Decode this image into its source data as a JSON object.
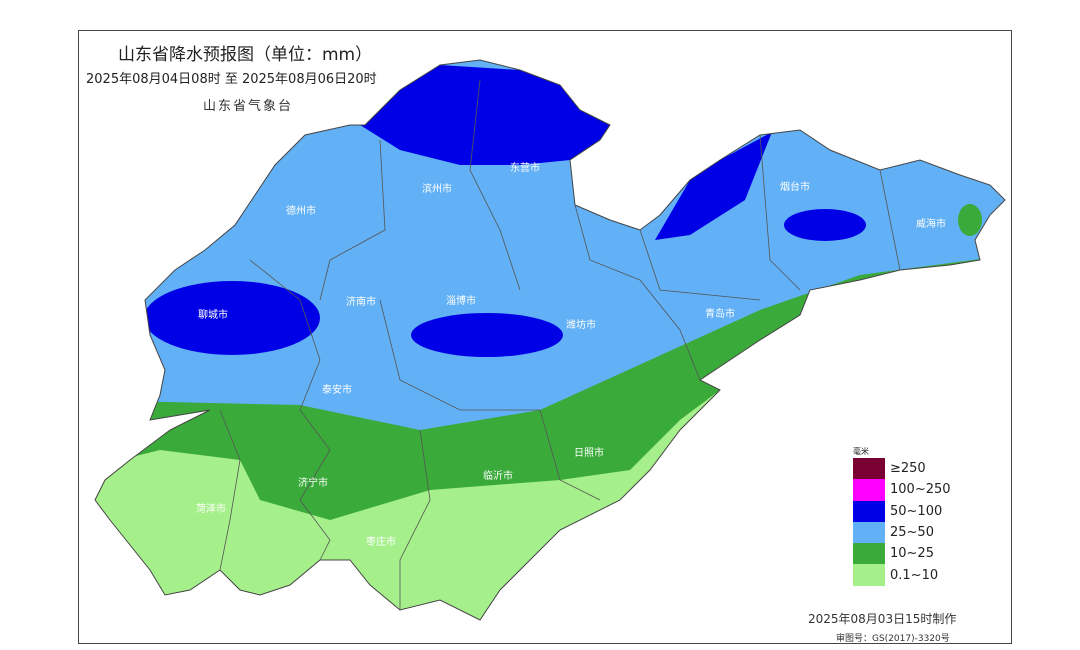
{
  "title": "山东省降水预报图（单位：mm）",
  "period": "2025年08月04日08时  至  2025年08月06日20时",
  "agency": "山东省气象台",
  "cities": [
    "德州市",
    "滨州市",
    "东营市",
    "烟台市",
    "威海市",
    "聊城市",
    "济南市",
    "淄博市",
    "潍坊市",
    "青岛市",
    "泰安市",
    "日照市",
    "临沂市",
    "济宁市",
    "菏泽市",
    "枣庄市"
  ],
  "legend": {
    "unit": "毫米",
    "items": [
      {
        "label": "≥250",
        "color": "#7a0033"
      },
      {
        "label": "100~250",
        "color": "#ff00ff"
      },
      {
        "label": "50~100",
        "color": "#0000e6"
      },
      {
        "label": "25~50",
        "color": "#62b0f5"
      },
      {
        "label": "10~25",
        "color": "#3aaa3a"
      },
      {
        "label": "0.1~10",
        "color": "#a6f08c"
      }
    ]
  },
  "footer": {
    "made": "2025年08月03日15时制作",
    "review": "审图号：GS(2017)-3320号"
  }
}
